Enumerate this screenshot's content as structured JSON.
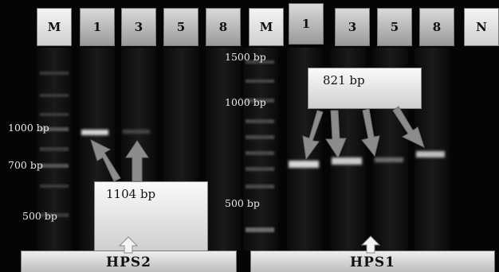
{
  "figure": {
    "lane_labels_left": [
      "M",
      "1",
      "3",
      "5",
      "8"
    ],
    "lane_labels_right": [
      "M",
      "1",
      "3",
      "5",
      "8",
      "N"
    ],
    "size_markers_left": [
      "1000 bp",
      "700 bp",
      "500 bp"
    ],
    "size_markers_right": [
      "1500 bp",
      "1000 bp",
      "500 bp"
    ],
    "callout_left": "1104 bp",
    "callout_right": "821 bp",
    "group_left": "HPS2",
    "group_right": "HPS1"
  },
  "colors": {
    "gel_background": "#050505",
    "arrow": "#8c8c8c",
    "band": "#d6d6d6"
  },
  "icons": [
    "arrow-icon",
    "up-arrow-icon"
  ]
}
